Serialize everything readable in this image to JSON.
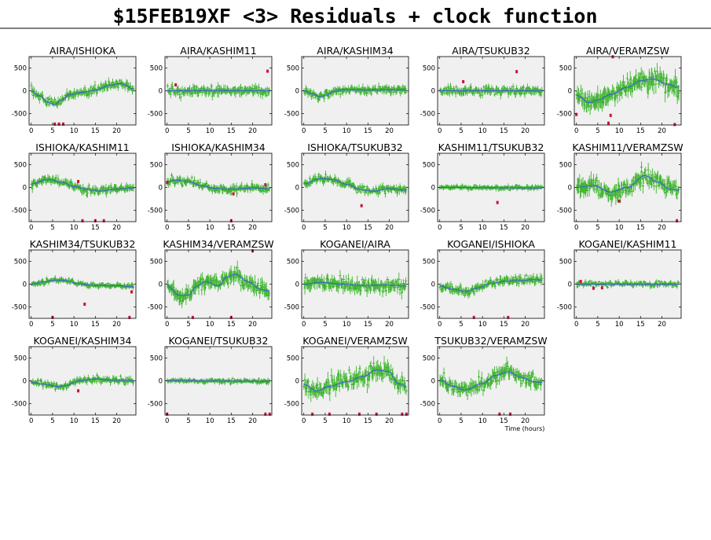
{
  "page": {
    "title": "$15FEB19XF <3> Residuals + clock function"
  },
  "colors": {
    "data": "#3cb42c",
    "outlier": "#c8143c",
    "model_line": "#3c5adc",
    "model_band": "#c8cde6",
    "panel_bg": "#f0f0f0"
  },
  "chart_data": {
    "type": "scatter",
    "xlabel": "Time (hours)",
    "xlim": [
      -0.5,
      24.5
    ],
    "ylim": [
      -750,
      750
    ],
    "xticks": [
      0,
      5,
      10,
      15,
      20
    ],
    "yticks": [
      -500,
      0,
      500
    ],
    "panels": [
      {
        "name": "AIRA/ISHIOKA",
        "row": 0,
        "col": 0,
        "amp": 320,
        "noise": 70,
        "seed": 1,
        "model": [
          [
            0,
            0
          ],
          [
            2,
            -110
          ],
          [
            4,
            -260
          ],
          [
            5.5,
            -300
          ],
          [
            7,
            -210
          ],
          [
            9,
            -80
          ],
          [
            12,
            -30
          ],
          [
            15,
            10
          ],
          [
            18,
            110
          ],
          [
            21,
            160
          ],
          [
            24,
            40
          ]
        ],
        "outliers": [
          [
            5.5,
            -730
          ],
          [
            6.5,
            -730
          ],
          [
            7.5,
            -730
          ]
        ],
        "xtick_labels": [
          "0",
          "5",
          "10",
          "15",
          "20"
        ],
        "ytick_labels": [
          "-500",
          "0",
          "500"
        ]
      },
      {
        "name": "AIRA/KASHIM11",
        "row": 0,
        "col": 1,
        "amp": 0,
        "noise": 75,
        "seed": 2,
        "model": [
          [
            0,
            0
          ],
          [
            24,
            0
          ]
        ],
        "outliers": [
          [
            2,
            130
          ],
          [
            23.5,
            430
          ]
        ],
        "xtick_labels": [
          "0",
          "5",
          "10",
          "15",
          "20"
        ],
        "ytick_labels": [
          "-500",
          "0",
          "500"
        ]
      },
      {
        "name": "AIRA/KASHIM34",
        "row": 0,
        "col": 2,
        "amp": 150,
        "noise": 65,
        "seed": 3,
        "model": [
          [
            0,
            0
          ],
          [
            2,
            -70
          ],
          [
            4,
            -130
          ],
          [
            5.5,
            -90
          ],
          [
            7,
            -10
          ],
          [
            9,
            20
          ],
          [
            24,
            20
          ]
        ],
        "outliers": [],
        "xtick_labels": [
          "0",
          "5",
          "10",
          "15",
          "20"
        ],
        "ytick_labels": [
          "-500",
          "0",
          "500"
        ]
      },
      {
        "name": "AIRA/TSUKUB32",
        "row": 0,
        "col": 3,
        "amp": 0,
        "noise": 70,
        "seed": 4,
        "model": [
          [
            0,
            0
          ],
          [
            24,
            0
          ]
        ],
        "outliers": [
          [
            5.5,
            200
          ],
          [
            18,
            420
          ]
        ],
        "xtick_labels": [
          "0",
          "5",
          "10",
          "15",
          "20"
        ],
        "ytick_labels": [
          "-500",
          "0",
          "500"
        ]
      },
      {
        "name": "AIRA/VERAMZSW",
        "row": 0,
        "col": 4,
        "amp": 350,
        "noise": 150,
        "seed": 5,
        "model": [
          [
            0,
            -100
          ],
          [
            3,
            -260
          ],
          [
            5,
            -200
          ],
          [
            8,
            -80
          ],
          [
            12,
            80
          ],
          [
            15,
            220
          ],
          [
            18,
            260
          ],
          [
            21,
            150
          ],
          [
            24,
            80
          ]
        ],
        "outliers": [
          [
            0,
            -520
          ],
          [
            7.5,
            -710
          ],
          [
            8,
            -540
          ],
          [
            8.5,
            750
          ],
          [
            23,
            -740
          ]
        ],
        "xtick_labels": [
          "0",
          "5",
          "10",
          "15",
          "20"
        ],
        "ytick_labels": [
          "-500",
          "0",
          "500"
        ]
      },
      {
        "name": "ISHIOKA/KASHIM11",
        "row": 1,
        "col": 0,
        "amp": 0,
        "noise": 70,
        "seed": 6,
        "model": [
          [
            0,
            80
          ],
          [
            4,
            180
          ],
          [
            7,
            120
          ],
          [
            10,
            20
          ],
          [
            13,
            -40
          ],
          [
            16,
            -80
          ],
          [
            20,
            -40
          ],
          [
            24,
            -10
          ]
        ],
        "outliers": [
          [
            11,
            130
          ],
          [
            12,
            -730
          ],
          [
            15,
            -730
          ],
          [
            17,
            -730
          ]
        ],
        "xtick_labels": [
          "0",
          "5",
          "10",
          "15",
          "20"
        ],
        "ytick_labels": [
          "-500",
          "0",
          "500"
        ]
      },
      {
        "name": "ISHIOKA/KASHIM34",
        "row": 1,
        "col": 1,
        "amp": 0,
        "noise": 65,
        "seed": 7,
        "model": [
          [
            0,
            120
          ],
          [
            2,
            160
          ],
          [
            5,
            130
          ],
          [
            8,
            40
          ],
          [
            11,
            -20
          ],
          [
            15,
            -40
          ],
          [
            18,
            -20
          ],
          [
            21,
            -10
          ],
          [
            24,
            -30
          ]
        ],
        "outliers": [
          [
            0,
            110
          ],
          [
            15.5,
            -140
          ],
          [
            15,
            -730
          ],
          [
            23,
            60
          ]
        ],
        "xtick_labels": [
          "0",
          "5",
          "10",
          "15",
          "20"
        ],
        "ytick_labels": [
          "-500",
          "0",
          "500"
        ]
      },
      {
        "name": "ISHIOKA/TSUKUB32",
        "row": 1,
        "col": 2,
        "amp": 0,
        "noise": 65,
        "seed": 8,
        "model": [
          [
            0,
            80
          ],
          [
            4,
            200
          ],
          [
            7,
            170
          ],
          [
            10,
            70
          ],
          [
            13,
            -40
          ],
          [
            16,
            -80
          ],
          [
            20,
            -30
          ],
          [
            24,
            -60
          ]
        ],
        "outliers": [
          [
            13.5,
            -400
          ]
        ],
        "xtick_labels": [
          "0",
          "5",
          "10",
          "15",
          "20"
        ],
        "ytick_labels": [
          "-500",
          "0",
          "500"
        ]
      },
      {
        "name": "KASHIM11/TSUKUB32",
        "row": 1,
        "col": 3,
        "amp": 0,
        "noise": 40,
        "seed": 9,
        "model": [
          [
            0,
            0
          ],
          [
            24,
            -10
          ]
        ],
        "outliers": [
          [
            13.5,
            -330
          ]
        ],
        "xtick_labels": [
          "0",
          "5",
          "10",
          "15",
          "20"
        ],
        "ytick_labels": [
          "-500",
          "0",
          "500"
        ]
      },
      {
        "name": "KASHIM11/VERAMZSW",
        "row": 1,
        "col": 4,
        "amp": 0,
        "noise": 130,
        "seed": 10,
        "model": [
          [
            0,
            0
          ],
          [
            4,
            40
          ],
          [
            8,
            -100
          ],
          [
            12,
            0
          ],
          [
            16,
            260
          ],
          [
            19,
            120
          ],
          [
            22,
            -40
          ],
          [
            24,
            -60
          ]
        ],
        "outliers": [
          [
            10,
            -300
          ],
          [
            23.5,
            -730
          ]
        ],
        "xtick_labels": [
          "0",
          "5",
          "10",
          "15",
          "20"
        ],
        "ytick_labels": [
          "-500",
          "0",
          "500"
        ]
      },
      {
        "name": "KASHIM34/TSUKUB32",
        "row": 2,
        "col": 0,
        "amp": 0,
        "noise": 45,
        "seed": 11,
        "model": [
          [
            0,
            0
          ],
          [
            3,
            50
          ],
          [
            6,
            90
          ],
          [
            8,
            80
          ],
          [
            11,
            10
          ],
          [
            15,
            -30
          ],
          [
            20,
            -30
          ],
          [
            24,
            -60
          ]
        ],
        "outliers": [
          [
            12.5,
            -440
          ],
          [
            23.5,
            -170
          ],
          [
            5,
            -730
          ],
          [
            23,
            -730
          ]
        ],
        "xtick_labels": [
          "0",
          "5",
          "10",
          "15",
          "20"
        ],
        "ytick_labels": [
          "-500",
          "0",
          "500"
        ]
      },
      {
        "name": "KASHIM34/VERAMZSW",
        "row": 2,
        "col": 1,
        "amp": 0,
        "noise": 120,
        "seed": 12,
        "model": [
          [
            0,
            -40
          ],
          [
            3,
            -250
          ],
          [
            5,
            -240
          ],
          [
            7,
            -40
          ],
          [
            9,
            60
          ],
          [
            12,
            -40
          ],
          [
            14,
            160
          ],
          [
            16,
            220
          ],
          [
            19,
            50
          ],
          [
            22,
            -120
          ],
          [
            24,
            -150
          ]
        ],
        "outliers": [
          [
            6,
            -730
          ],
          [
            15,
            -730
          ],
          [
            20,
            730
          ]
        ],
        "xtick_labels": [
          "0",
          "5",
          "10",
          "15",
          "20"
        ],
        "ytick_labels": [
          "-500",
          "0",
          "500"
        ]
      },
      {
        "name": "KOGANEI/AIRA",
        "row": 2,
        "col": 2,
        "amp": 0,
        "noise": 105,
        "seed": 13,
        "model": [
          [
            0,
            0
          ],
          [
            4,
            40
          ],
          [
            9,
            0
          ],
          [
            14,
            -30
          ],
          [
            19,
            -20
          ],
          [
            24,
            -40
          ]
        ],
        "outliers": [],
        "xtick_labels": [
          "0",
          "5",
          "10",
          "15",
          "20"
        ],
        "ytick_labels": [
          "-500",
          "0",
          "500"
        ]
      },
      {
        "name": "KOGANEI/ISHIOKA",
        "row": 2,
        "col": 3,
        "amp": 0,
        "noise": 70,
        "seed": 14,
        "model": [
          [
            0,
            -40
          ],
          [
            3,
            -110
          ],
          [
            6,
            -160
          ],
          [
            9,
            -80
          ],
          [
            12,
            20
          ],
          [
            15,
            60
          ],
          [
            19,
            80
          ],
          [
            22,
            100
          ],
          [
            24,
            90
          ]
        ],
        "outliers": [
          [
            8,
            -730
          ],
          [
            16,
            -730
          ]
        ],
        "xtick_labels": [
          "0",
          "5",
          "10",
          "15",
          "20"
        ],
        "ytick_labels": [
          "-500",
          "0",
          "500"
        ]
      },
      {
        "name": "KOGANEI/KASHIM11",
        "row": 2,
        "col": 4,
        "amp": 0,
        "noise": 45,
        "seed": 15,
        "model": [
          [
            0,
            0
          ],
          [
            24,
            0
          ]
        ],
        "outliers": [
          [
            1,
            60
          ],
          [
            4,
            -90
          ],
          [
            6,
            -80
          ]
        ],
        "xtick_labels": [
          "0",
          "5",
          "10",
          "15",
          "20"
        ],
        "ytick_labels": [
          "-500",
          "0",
          "500"
        ]
      },
      {
        "name": "KOGANEI/KASHIM34",
        "row": 3,
        "col": 0,
        "amp": 0,
        "noise": 55,
        "seed": 16,
        "model": [
          [
            0,
            -40
          ],
          [
            3,
            -70
          ],
          [
            6,
            -120
          ],
          [
            8,
            -110
          ],
          [
            11,
            0
          ],
          [
            15,
            40
          ],
          [
            20,
            10
          ],
          [
            24,
            0
          ]
        ],
        "outliers": [
          [
            11,
            -220
          ]
        ],
        "xtick_labels": [
          "0",
          "5",
          "10",
          "15",
          "20"
        ],
        "ytick_labels": [
          "-500",
          "0",
          "500"
        ]
      },
      {
        "name": "KOGANEI/TSUKUB32",
        "row": 3,
        "col": 1,
        "amp": 0,
        "noise": 40,
        "seed": 17,
        "model": [
          [
            0,
            0
          ],
          [
            24,
            -10
          ]
        ],
        "outliers": [
          [
            23,
            -730
          ],
          [
            24,
            -730
          ],
          [
            0,
            -730
          ]
        ],
        "xtick_labels": [
          "0",
          "5",
          "10",
          "15",
          "20"
        ],
        "ytick_labels": [
          "-500",
          "0",
          "500"
        ]
      },
      {
        "name": "KOGANEI/VERAMZSW",
        "row": 3,
        "col": 2,
        "amp": 0,
        "noise": 130,
        "seed": 18,
        "model": [
          [
            0,
            -80
          ],
          [
            3,
            -220
          ],
          [
            6,
            -120
          ],
          [
            10,
            -20
          ],
          [
            14,
            100
          ],
          [
            17,
            240
          ],
          [
            20,
            200
          ],
          [
            22,
            -60
          ],
          [
            24,
            -120
          ]
        ],
        "outliers": [
          [
            2,
            -730
          ],
          [
            6,
            -730
          ],
          [
            13,
            -730
          ],
          [
            17,
            -730
          ],
          [
            23,
            -730
          ],
          [
            24,
            -730
          ]
        ],
        "xtick_labels": [
          "0",
          "5",
          "10",
          "15",
          "20"
        ],
        "ytick_labels": [
          "-500",
          "0",
          "500"
        ]
      },
      {
        "name": "TSUKUB32/VERAMZSW",
        "row": 3,
        "col": 3,
        "amp": 0,
        "noise": 110,
        "seed": 19,
        "model": [
          [
            0,
            20
          ],
          [
            3,
            -120
          ],
          [
            6,
            -200
          ],
          [
            10,
            -60
          ],
          [
            13,
            120
          ],
          [
            16,
            200
          ],
          [
            19,
            80
          ],
          [
            22,
            -20
          ],
          [
            24,
            -40
          ]
        ],
        "outliers": [
          [
            14,
            -730
          ],
          [
            16.5,
            -730
          ]
        ],
        "xtick_labels": [
          "0",
          "5",
          "10",
          "15",
          "20"
        ],
        "ytick_labels": [
          "-500",
          "0",
          "500"
        ]
      }
    ]
  }
}
